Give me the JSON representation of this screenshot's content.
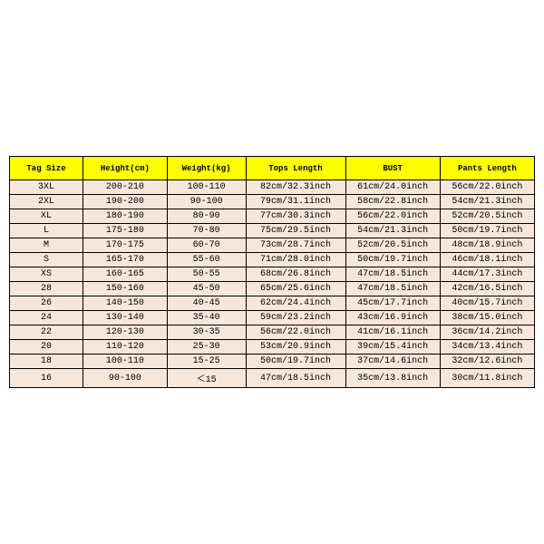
{
  "table": {
    "type": "table",
    "header_bg": "#ffff00",
    "row_bg": "#f7e6da",
    "border_color": "#000000",
    "header_fontsize": 9,
    "cell_fontsize": 10,
    "font_family": "Courier New",
    "column_widths_pct": [
      14,
      16,
      15,
      19,
      18,
      18
    ],
    "columns": [
      "Tag Size",
      "Height(cm)",
      "Weight(kg)",
      "Tops Length",
      "BUST",
      "Pants Length"
    ],
    "rows": [
      [
        "3XL",
        "200-210",
        "100-110",
        "82cm/32.3inch",
        "61cm/24.0inch",
        "56cm/22.0inch"
      ],
      [
        "2XL",
        "190-200",
        "90-100",
        "79cm/31.1inch",
        "58cm/22.8inch",
        "54cm/21.3inch"
      ],
      [
        "XL",
        "180-190",
        "80-90",
        "77cm/30.3inch",
        "56cm/22.0inch",
        "52cm/20.5inch"
      ],
      [
        "L",
        "175-180",
        "70-80",
        "75cm/29.5inch",
        "54cm/21.3inch",
        "50cm/19.7inch"
      ],
      [
        "M",
        "170-175",
        "60-70",
        "73cm/28.7inch",
        "52cm/20.5inch",
        "48cm/18.9inch"
      ],
      [
        "S",
        "165-170",
        "55-60",
        "71cm/28.0inch",
        "50cm/19.7inch",
        "46cm/18.1inch"
      ],
      [
        "XS",
        "160-165",
        "50-55",
        "68cm/26.8inch",
        "47cm/18.5inch",
        "44cm/17.3inch"
      ],
      [
        "28",
        "150-160",
        "45-50",
        "65cm/25.6inch",
        "47cm/18.5inch",
        "42cm/16.5inch"
      ],
      [
        "26",
        "140-150",
        "40-45",
        "62cm/24.4inch",
        "45cm/17.7inch",
        "40cm/15.7inch"
      ],
      [
        "24",
        "130-140",
        "35-40",
        "59cm/23.2inch",
        "43cm/16.9inch",
        "38cm/15.0inch"
      ],
      [
        "22",
        "120-130",
        "30-35",
        "56cm/22.0inch",
        "41cm/16.1inch",
        "36cm/14.2inch"
      ],
      [
        "20",
        "110-120",
        "25-30",
        "53cm/20.9inch",
        "39cm/15.4inch",
        "34cm/13.4inch"
      ],
      [
        "18",
        "100-110",
        "15-25",
        "50cm/19.7inch",
        "37cm/14.6inch",
        "32cm/12.6inch"
      ],
      [
        "16",
        "90-100",
        "＜15",
        "47cm/18.5inch",
        "35cm/13.8inch",
        "30cm/11.8inch"
      ]
    ]
  }
}
